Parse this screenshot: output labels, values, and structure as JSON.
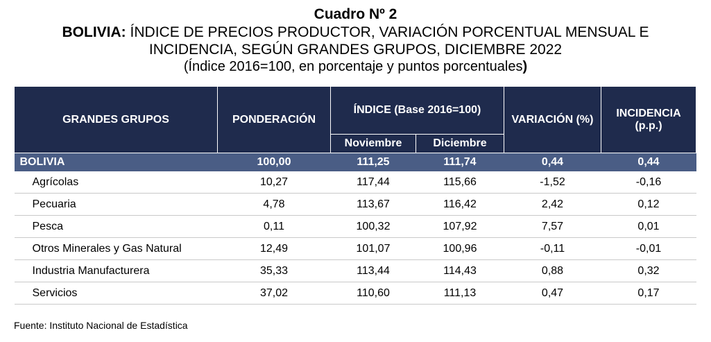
{
  "title": {
    "line1": "Cuadro Nº 2",
    "line2_bold": "BOLIVIA:",
    "line2_rest": " ÍNDICE DE PRECIOS PRODUCTOR, VARIACIÓN PORCENTUAL MENSUAL E",
    "line3": "INCIDENCIA, SEGÚN GRANDES GRUPOS, DICIEMBRE 2022",
    "line4_open": "(Índice 2016=100, en porcentaje y puntos porcentuales",
    "line4_close": ")"
  },
  "headers": {
    "grupos": "GRANDES GRUPOS",
    "ponderacion": "PONDERACIÓN",
    "indice": "ÍNDICE (Base 2016=100)",
    "noviembre": "Noviembre",
    "diciembre": "Diciembre",
    "variacion": "VARIACIÓN (%)",
    "incidencia": "INCIDENCIA (p.p.)"
  },
  "total": {
    "label": "BOLIVIA",
    "ponderacion": "100,00",
    "noviembre": "111,25",
    "diciembre": "111,74",
    "variacion": "0,44",
    "incidencia": "0,44"
  },
  "rows": [
    {
      "label": "Agrícolas",
      "ponderacion": "10,27",
      "noviembre": "117,44",
      "diciembre": "115,66",
      "variacion": "-1,52",
      "incidencia": "-0,16"
    },
    {
      "label": "Pecuaria",
      "ponderacion": "4,78",
      "noviembre": "113,67",
      "diciembre": "116,42",
      "variacion": "2,42",
      "incidencia": "0,12"
    },
    {
      "label": "Pesca",
      "ponderacion": "0,11",
      "noviembre": "100,32",
      "diciembre": "107,92",
      "variacion": "7,57",
      "incidencia": "0,01"
    },
    {
      "label": "Otros Minerales y Gas Natural",
      "ponderacion": "12,49",
      "noviembre": "101,07",
      "diciembre": "100,96",
      "variacion": "-0,11",
      "incidencia": "-0,01"
    },
    {
      "label": "Industria Manufacturera",
      "ponderacion": "35,33",
      "noviembre": "113,44",
      "diciembre": "114,43",
      "variacion": "0,88",
      "incidencia": "0,32"
    },
    {
      "label": "Servicios",
      "ponderacion": "37,02",
      "noviembre": "110,60",
      "diciembre": "111,13",
      "variacion": "0,47",
      "incidencia": "0,17"
    }
  ],
  "source": "Fuente: Instituto Nacional de Estadística"
}
